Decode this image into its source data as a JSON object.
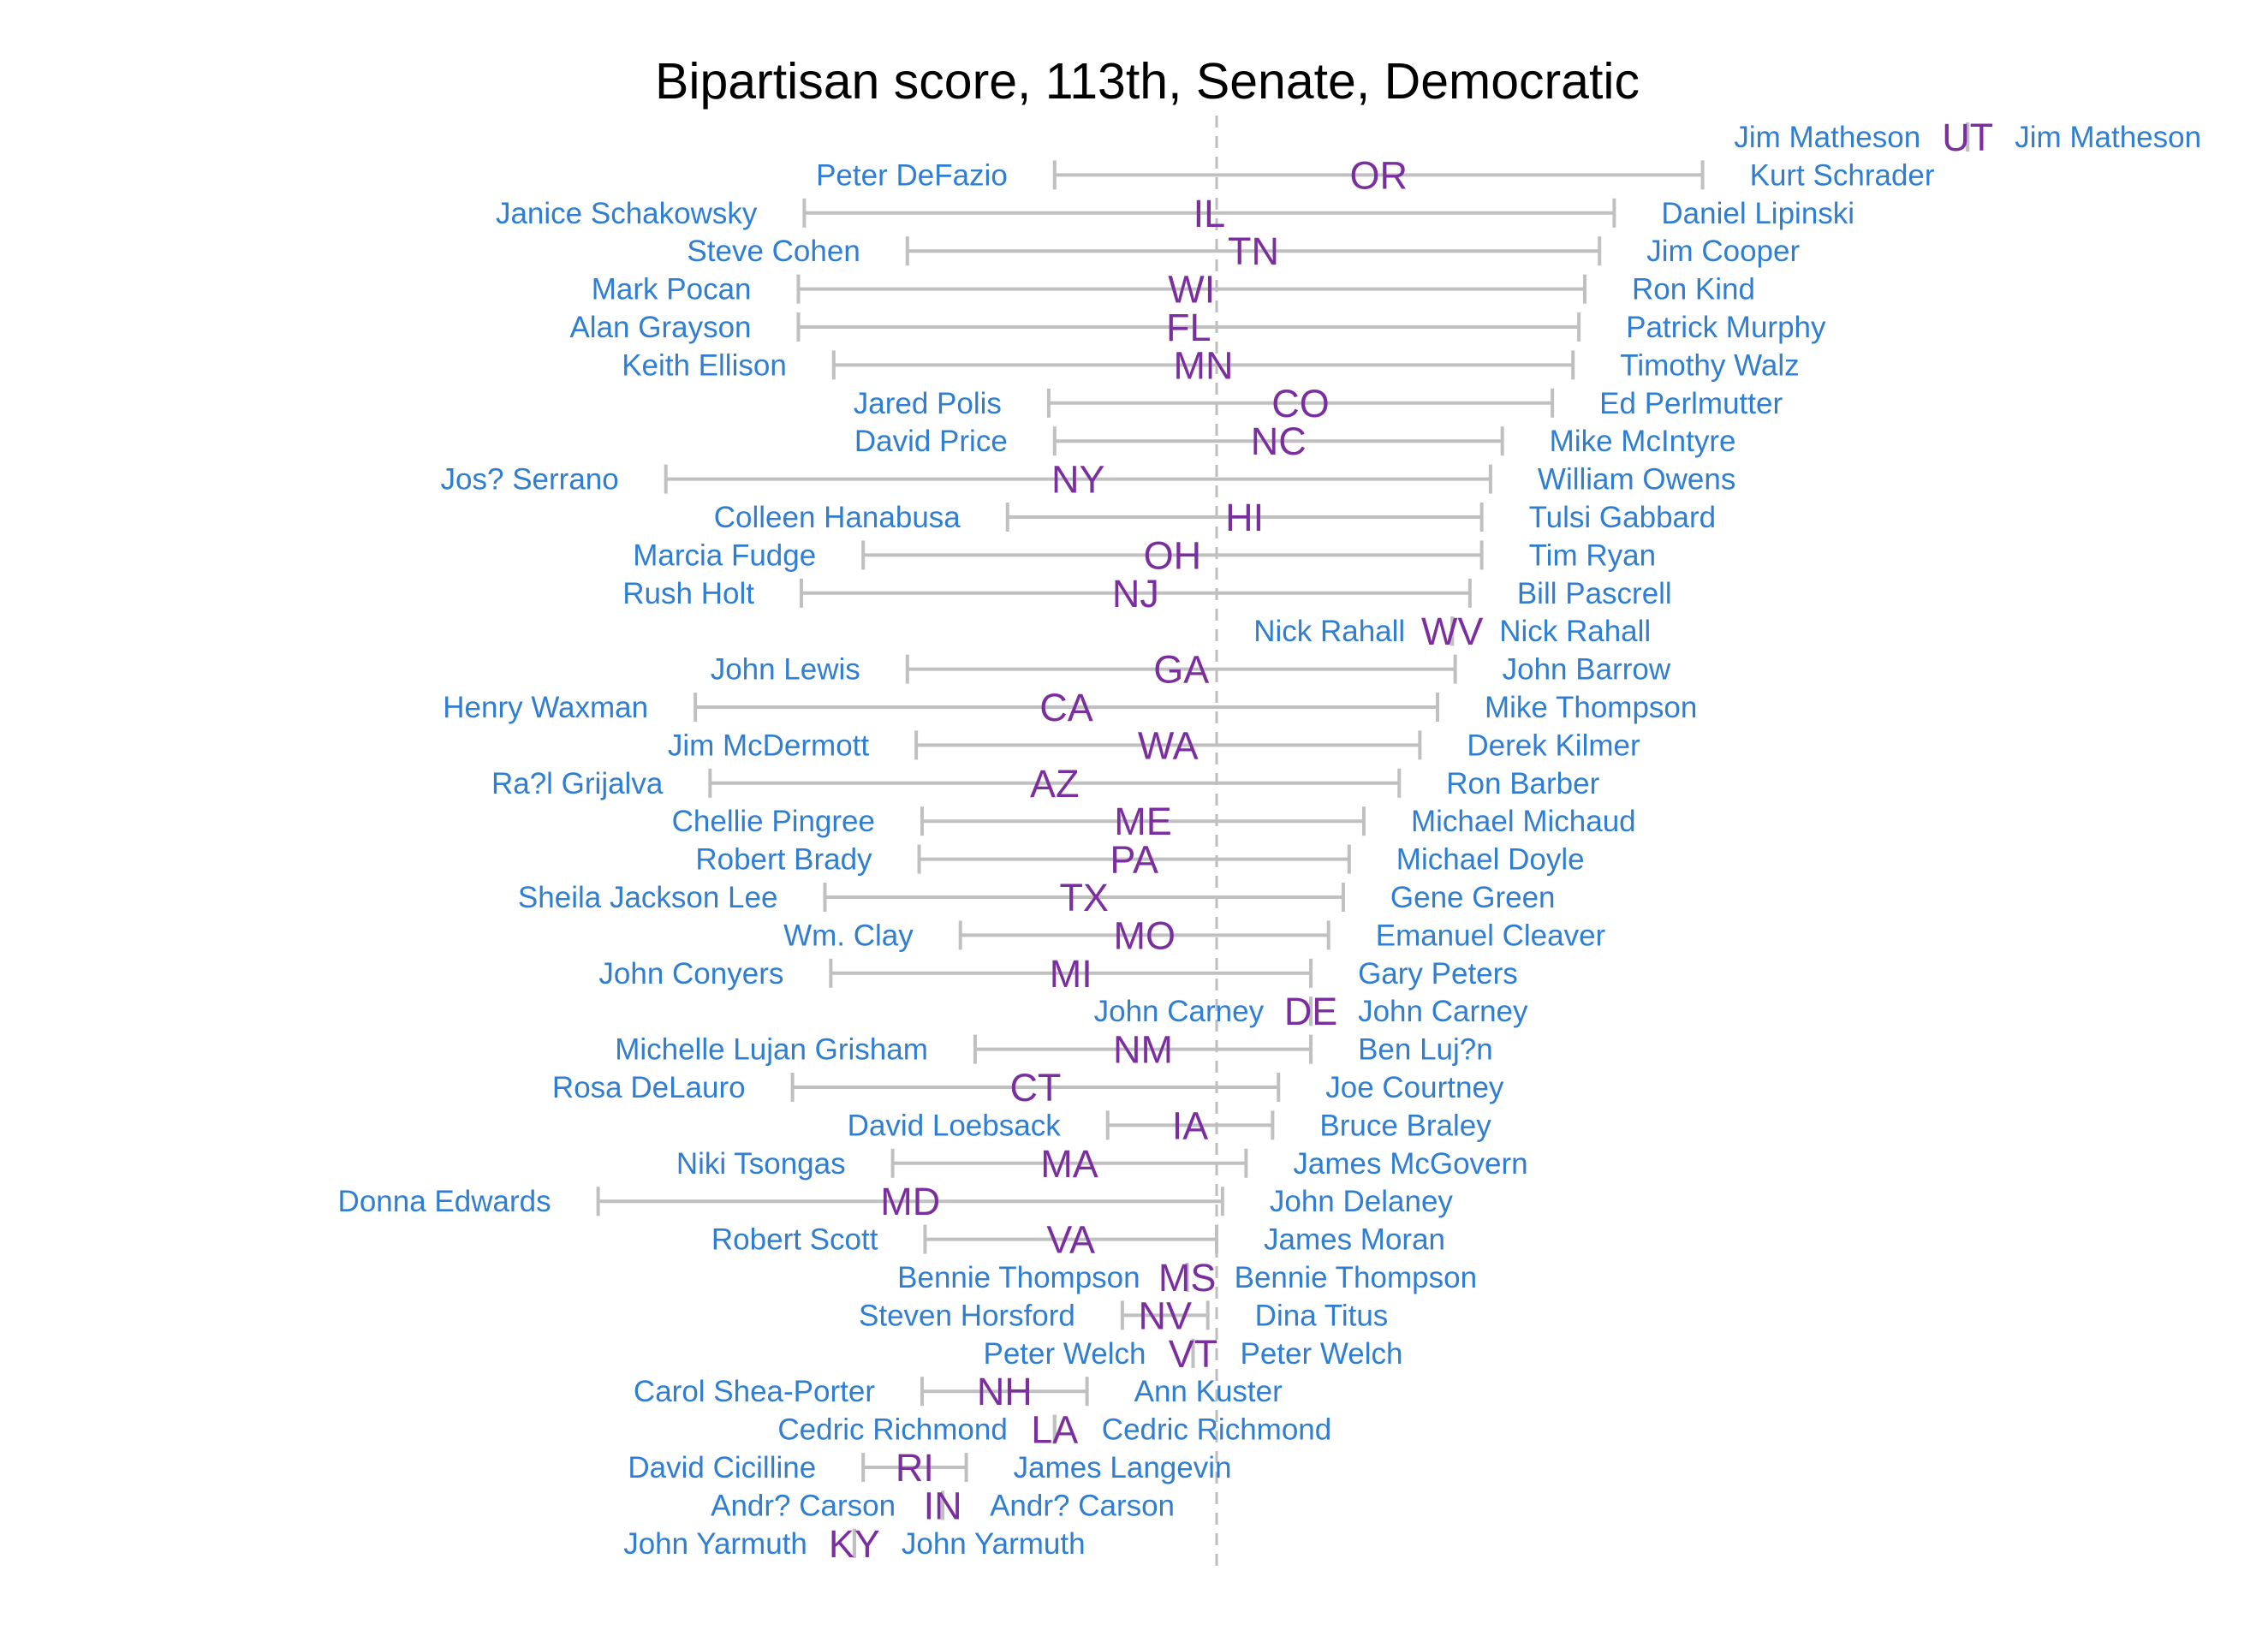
{
  "chart_data": {
    "type": "dumbbell",
    "title": "Bipartisan score, 113th, Senate, Democratic",
    "xlabel": "",
    "ylabel": "",
    "grid": false,
    "reference_line_x": 0.0,
    "xlim": [
      -3.0,
      2.6
    ],
    "colors": {
      "names": "#2F7ED1",
      "states": "#7B2F9F",
      "ranges": "#C0C0C0",
      "reference": "#BDBDBD"
    },
    "rows": [
      {
        "state": "UT",
        "min": 2.55,
        "max": 2.55,
        "min_name": "Jim Matheson",
        "max_name": "Jim Matheson"
      },
      {
        "state": "OR",
        "min": -0.55,
        "max": 1.65,
        "min_name": "Peter DeFazio",
        "max_name": "Kurt Schrader"
      },
      {
        "state": "IL",
        "min": -1.4,
        "max": 1.35,
        "min_name": "Janice Schakowsky",
        "max_name": "Daniel Lipinski"
      },
      {
        "state": "TN",
        "min": -1.05,
        "max": 1.3,
        "min_name": "Steve Cohen",
        "max_name": "Jim Cooper"
      },
      {
        "state": "WI",
        "min": -1.42,
        "max": 1.25,
        "min_name": "Mark Pocan",
        "max_name": "Ron Kind"
      },
      {
        "state": "FL",
        "min": -1.42,
        "max": 1.23,
        "min_name": "Alan Grayson",
        "max_name": "Patrick Murphy"
      },
      {
        "state": "MN",
        "min": -1.3,
        "max": 1.21,
        "min_name": "Keith Ellison",
        "max_name": "Timothy Walz"
      },
      {
        "state": "CO",
        "min": -0.57,
        "max": 1.14,
        "min_name": "Jared Polis",
        "max_name": "Ed Perlmutter"
      },
      {
        "state": "NC",
        "min": -0.55,
        "max": 0.97,
        "min_name": "David Price",
        "max_name": "Mike McIntyre"
      },
      {
        "state": "NY",
        "min": -1.87,
        "max": 0.93,
        "min_name": "Jos? Serrano",
        "max_name": "William Owens"
      },
      {
        "state": "HI",
        "min": -0.71,
        "max": 0.9,
        "min_name": "Colleen Hanabusa",
        "max_name": "Tulsi Gabbard"
      },
      {
        "state": "OH",
        "min": -1.2,
        "max": 0.9,
        "min_name": "Marcia Fudge",
        "max_name": "Tim Ryan"
      },
      {
        "state": "NJ",
        "min": -1.41,
        "max": 0.86,
        "min_name": "Rush Holt",
        "max_name": "Bill Pascrell"
      },
      {
        "state": "WV",
        "min": 0.8,
        "max": 0.8,
        "min_name": "Nick Rahall",
        "max_name": "Nick Rahall"
      },
      {
        "state": "GA",
        "min": -1.05,
        "max": 0.81,
        "min_name": "John Lewis",
        "max_name": "John Barrow"
      },
      {
        "state": "CA",
        "min": -1.77,
        "max": 0.75,
        "min_name": "Henry Waxman",
        "max_name": "Mike Thompson"
      },
      {
        "state": "WA",
        "min": -1.02,
        "max": 0.69,
        "min_name": "Jim McDermott",
        "max_name": "Derek Kilmer"
      },
      {
        "state": "AZ",
        "min": -1.72,
        "max": 0.62,
        "min_name": "Ra?l Grijalva",
        "max_name": "Ron Barber"
      },
      {
        "state": "ME",
        "min": -1.0,
        "max": 0.5,
        "min_name": "Chellie Pingree",
        "max_name": "Michael Michaud"
      },
      {
        "state": "PA",
        "min": -1.01,
        "max": 0.45,
        "min_name": "Robert Brady",
        "max_name": "Michael Doyle"
      },
      {
        "state": "TX",
        "min": -1.33,
        "max": 0.43,
        "min_name": "Sheila Jackson Lee",
        "max_name": "Gene Green"
      },
      {
        "state": "MO",
        "min": -0.87,
        "max": 0.38,
        "min_name": "Wm. Clay",
        "max_name": "Emanuel Cleaver"
      },
      {
        "state": "MI",
        "min": -1.31,
        "max": 0.32,
        "min_name": "John Conyers",
        "max_name": "Gary Peters"
      },
      {
        "state": "DE",
        "min": 0.32,
        "max": 0.32,
        "min_name": "John Carney",
        "max_name": "John Carney"
      },
      {
        "state": "NM",
        "min": -0.82,
        "max": 0.32,
        "min_name": "Michelle Lujan Grisham",
        "max_name": "Ben Luj?n"
      },
      {
        "state": "CT",
        "min": -1.44,
        "max": 0.21,
        "min_name": "Rosa DeLauro",
        "max_name": "Joe Courtney"
      },
      {
        "state": "IA",
        "min": -0.37,
        "max": 0.19,
        "min_name": "David Loebsack",
        "max_name": "Bruce Braley"
      },
      {
        "state": "MA",
        "min": -1.1,
        "max": 0.1,
        "min_name": "Niki Tsongas",
        "max_name": "James McGovern"
      },
      {
        "state": "MD",
        "min": -2.1,
        "max": 0.02,
        "min_name": "Donna Edwards",
        "max_name": "John Delaney"
      },
      {
        "state": "VA",
        "min": -0.99,
        "max": 0.0,
        "min_name": "Robert Scott",
        "max_name": "James Moran"
      },
      {
        "state": "MS",
        "min": -0.1,
        "max": -0.1,
        "min_name": "Bennie Thompson",
        "max_name": "Bennie Thompson"
      },
      {
        "state": "NV",
        "min": -0.32,
        "max": -0.03,
        "min_name": "Steven Horsford",
        "max_name": "Dina Titus"
      },
      {
        "state": "VT",
        "min": -0.08,
        "max": -0.08,
        "min_name": "Peter Welch",
        "max_name": "Peter Welch"
      },
      {
        "state": "NH",
        "min": -1.0,
        "max": -0.44,
        "min_name": "Carol Shea-Porter",
        "max_name": "Ann Kuster"
      },
      {
        "state": "LA",
        "min": -0.55,
        "max": -0.55,
        "min_name": "Cedric Richmond",
        "max_name": "Cedric Richmond"
      },
      {
        "state": "RI",
        "min": -1.2,
        "max": -0.85,
        "min_name": "David Cicilline",
        "max_name": "James Langevin"
      },
      {
        "state": "IN",
        "min": -0.93,
        "max": -0.93,
        "min_name": "Andr? Carson",
        "max_name": "Andr? Carson"
      },
      {
        "state": "KY",
        "min": -1.23,
        "max": -1.23,
        "min_name": "John Yarmuth",
        "max_name": "John Yarmuth"
      }
    ]
  }
}
